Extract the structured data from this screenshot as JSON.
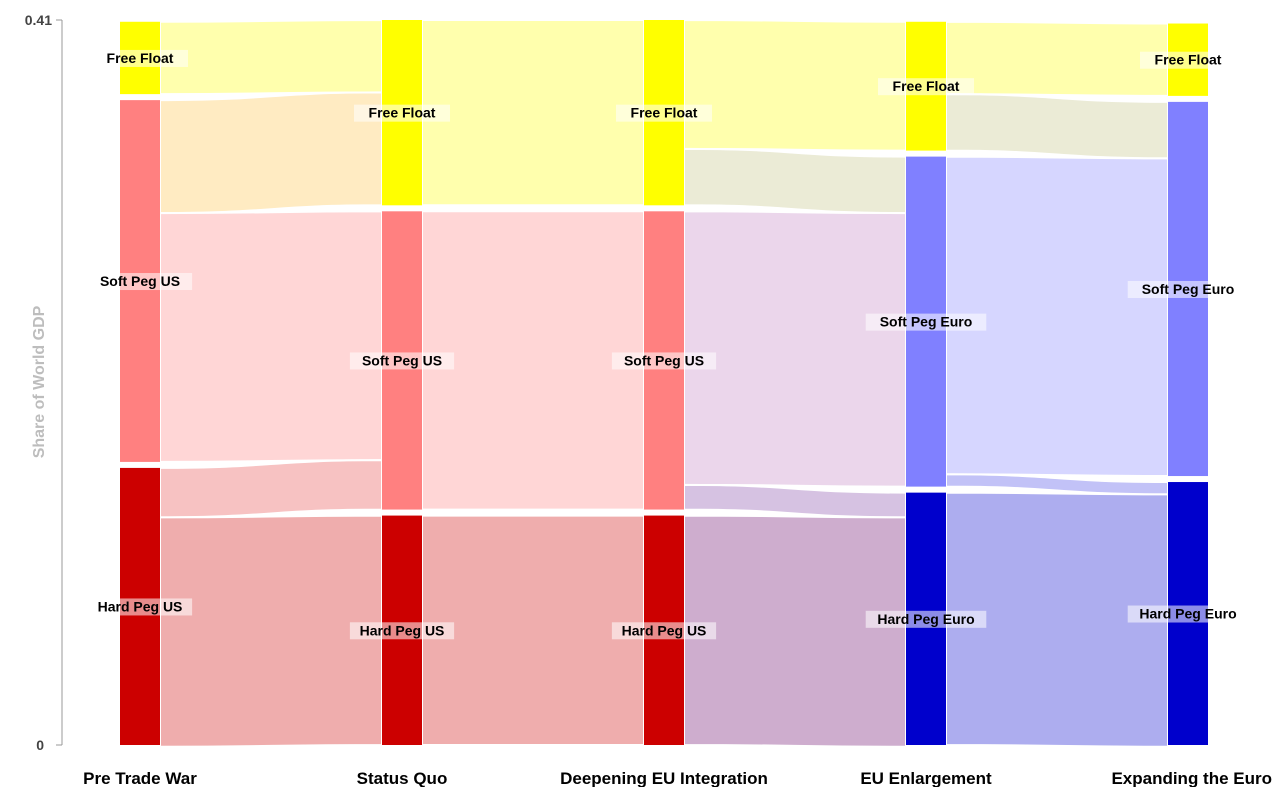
{
  "chart_data": {
    "type": "alluvial",
    "ylabel": "Share of World GDP",
    "yticks": [
      "0",
      "0.41"
    ],
    "ylim": [
      0,
      0.41
    ],
    "stages": [
      "Pre Trade War",
      "Status Quo",
      "Deepening EU Integration",
      "EU Enlargement",
      "Expanding the Euro"
    ],
    "colors": {
      "Free Float": "#ffff00",
      "Soft Peg US": "#ff8080",
      "Hard Peg US": "#cc0000",
      "Soft Peg Euro": "#8080ff",
      "Hard Peg Euro": "#0000cc"
    },
    "nodes": [
      [
        {
          "label": "Free Float",
          "value": 0.041
        },
        {
          "label": "Soft Peg US",
          "value": 0.205
        },
        {
          "label": "Hard Peg US",
          "value": 0.157
        }
      ],
      [
        {
          "label": "Free Float",
          "value": 0.105
        },
        {
          "label": "Soft Peg US",
          "value": 0.169
        },
        {
          "label": "Hard Peg US",
          "value": 0.13
        }
      ],
      [
        {
          "label": "Free Float",
          "value": 0.105
        },
        {
          "label": "Soft Peg US",
          "value": 0.169
        },
        {
          "label": "Hard Peg US",
          "value": 0.13
        }
      ],
      [
        {
          "label": "Free Float",
          "value": 0.073
        },
        {
          "label": "Soft Peg Euro",
          "value": 0.187
        },
        {
          "label": "Hard Peg Euro",
          "value": 0.143
        }
      ],
      [
        {
          "label": "Free Float",
          "value": 0.041
        },
        {
          "label": "Soft Peg Euro",
          "value": 0.212
        },
        {
          "label": "Hard Peg Euro",
          "value": 0.149
        }
      ]
    ],
    "flows": [
      [
        {
          "from": "Free Float",
          "to": "Free Float",
          "value": 0.041
        },
        {
          "from": "Soft Peg US",
          "to": "Free Float",
          "value": 0.064
        },
        {
          "from": "Soft Peg US",
          "to": "Soft Peg US",
          "value": 0.141
        },
        {
          "from": "Hard Peg US",
          "to": "Soft Peg US",
          "value": 0.028
        },
        {
          "from": "Hard Peg US",
          "to": "Hard Peg US",
          "value": 0.13
        }
      ],
      [
        {
          "from": "Free Float",
          "to": "Free Float",
          "value": 0.105
        },
        {
          "from": "Soft Peg US",
          "to": "Soft Peg US",
          "value": 0.169
        },
        {
          "from": "Hard Peg US",
          "to": "Hard Peg US",
          "value": 0.13
        }
      ],
      [
        {
          "from": "Free Float",
          "to": "Free Float",
          "value": 0.073
        },
        {
          "from": "Free Float",
          "to": "Soft Peg Euro",
          "value": 0.032
        },
        {
          "from": "Soft Peg US",
          "to": "Soft Peg Euro",
          "value": 0.155
        },
        {
          "from": "Soft Peg US",
          "to": "Hard Peg Euro",
          "value": 0.014
        },
        {
          "from": "Hard Peg US",
          "to": "Hard Peg Euro",
          "value": 0.13
        }
      ],
      [
        {
          "from": "Free Float",
          "to": "Free Float",
          "value": 0.041
        },
        {
          "from": "Free Float",
          "to": "Soft Peg Euro",
          "value": 0.032
        },
        {
          "from": "Soft Peg Euro",
          "to": "Soft Peg Euro",
          "value": 0.18
        },
        {
          "from": "Soft Peg Euro",
          "to": "Hard Peg Euro",
          "value": 0.007
        },
        {
          "from": "Hard Peg Euro",
          "to": "Hard Peg Euro",
          "value": 0.143
        }
      ]
    ]
  }
}
